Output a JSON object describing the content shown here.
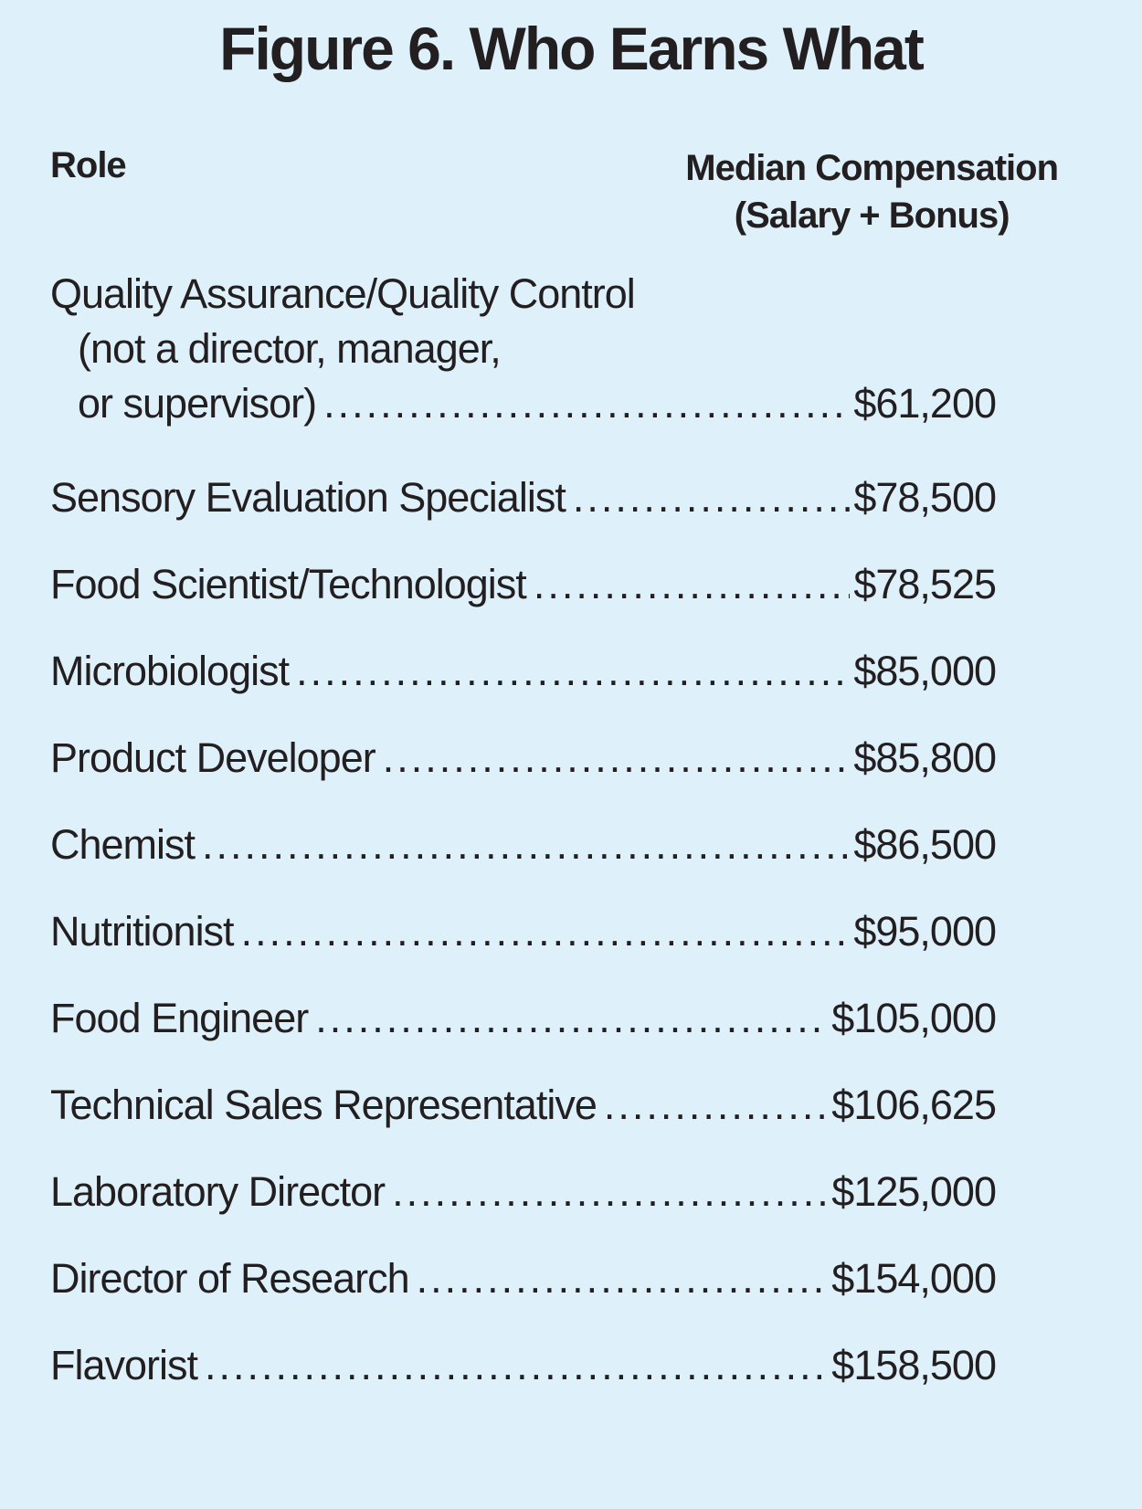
{
  "figure": {
    "title": "Figure 6. Who Earns What"
  },
  "table": {
    "col_role": "Role",
    "col_value_line1": "Median Compensation",
    "col_value_line2": "(Salary + Bonus)",
    "rows": [
      {
        "lines": [
          "Quality Assurance/Quality Control",
          "(not a director, manager,"
        ],
        "last_line": "or supervisor)",
        "indent_last": true,
        "value": "$61,200"
      },
      {
        "last_line": "Sensory Evaluation Specialist",
        "value": "$78,500"
      },
      {
        "last_line": "Food Scientist/Technologist",
        "value": "$78,525"
      },
      {
        "last_line": "Microbiologist",
        "value": "$85,000"
      },
      {
        "last_line": "Product Developer",
        "value": "$85,800"
      },
      {
        "last_line": "Chemist",
        "value": "$86,500"
      },
      {
        "last_line": "Nutritionist",
        "value": "$95,000"
      },
      {
        "last_line": "Food Engineer",
        "value": "$105,000"
      },
      {
        "last_line": "Technical Sales Representative",
        "value": "$106,625"
      },
      {
        "last_line": "Laboratory Director",
        "value": "$125,000"
      },
      {
        "last_line": "Director of Research",
        "value": "$154,000"
      },
      {
        "last_line": "Flavorist",
        "value": "$158,500"
      }
    ]
  },
  "colors": {
    "background": "#DEF0FA",
    "text": "#231F20"
  },
  "chart_data": {
    "type": "table",
    "title": "Figure 6. Who Earns What",
    "columns": [
      "Role",
      "Median Compensation (Salary + Bonus)"
    ],
    "categories": [
      "Quality Assurance/Quality Control (not a director, manager, or supervisor)",
      "Sensory Evaluation Specialist",
      "Food Scientist/Technologist",
      "Microbiologist",
      "Product Developer",
      "Chemist",
      "Nutritionist",
      "Food Engineer",
      "Technical Sales Representative",
      "Laboratory Director",
      "Director of Research",
      "Flavorist"
    ],
    "values": [
      61200,
      78500,
      78525,
      85000,
      85800,
      86500,
      95000,
      105000,
      106625,
      125000,
      154000,
      158500
    ],
    "values_display": [
      "$61,200",
      "$78,500",
      "$78,525",
      "$85,000",
      "$85,800",
      "$86,500",
      "$95,000",
      "$105,000",
      "$106,625",
      "$125,000",
      "$154,000",
      "$158,500"
    ],
    "layout": "leadered list, values right-aligned, grid off, no axes"
  }
}
